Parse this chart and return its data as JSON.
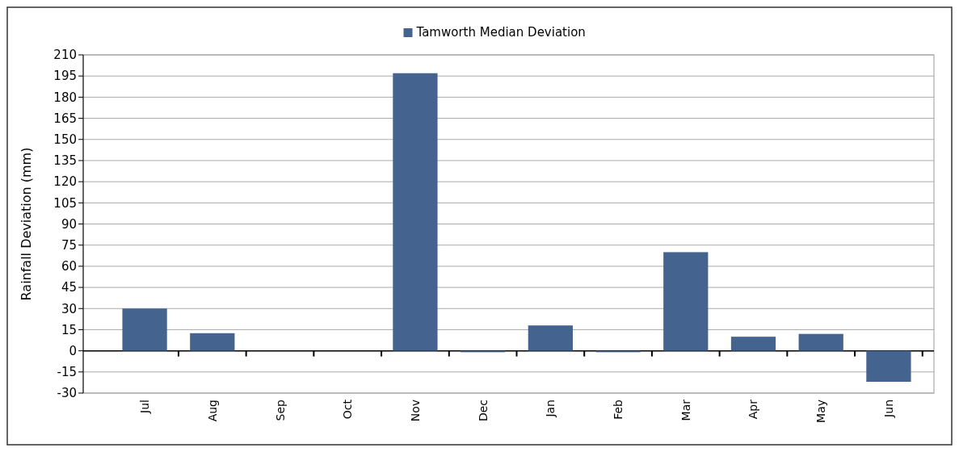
{
  "chart_data": {
    "type": "bar",
    "ylabel": "Rainfall Deviation (mm)",
    "categories": [
      "Jul",
      "Aug",
      "Sep",
      "Oct",
      "Nov",
      "Dec",
      "Jan",
      "Feb",
      "Mar",
      "Apr",
      "May",
      "Jun"
    ],
    "series": [
      {
        "name": "Tamworth Median Deviation",
        "color": "#44648f",
        "values": [
          30,
          12.5,
          0,
          0,
          197,
          -1,
          18,
          -1,
          70,
          10,
          12,
          -22
        ]
      }
    ],
    "ylim": [
      -30,
      210
    ],
    "yticks": [
      -30,
      -15,
      0,
      15,
      30,
      45,
      60,
      75,
      90,
      105,
      120,
      135,
      150,
      165,
      180,
      195,
      210
    ],
    "grid": "y",
    "legend": "top"
  }
}
